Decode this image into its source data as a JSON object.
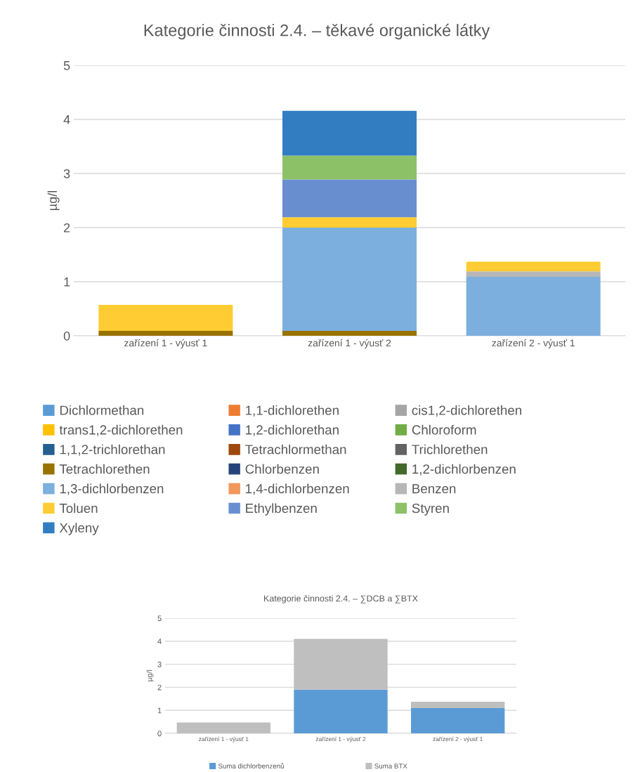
{
  "chart_data": [
    {
      "type": "bar",
      "title": "Kategorie činnosti 2.4. – těkavé organické látky",
      "ylabel": "µg/l",
      "stacked": true,
      "grid": "y",
      "legend": "bottom",
      "categories": [
        "zařízení 1 - výusť 1",
        "zařízení 1 - výusť 2",
        "zařízení 2 - výusť 1"
      ],
      "ylim": [
        0,
        5
      ],
      "yticks": [
        0,
        1,
        2,
        3,
        4,
        5
      ],
      "series": [
        {
          "name": "Dichlormethan",
          "color": "#5b9bd5",
          "values": [
            0,
            0,
            0
          ]
        },
        {
          "name": "1,1-dichlorethen",
          "color": "#ed7d31",
          "values": [
            0,
            0,
            0
          ]
        },
        {
          "name": "cis1,2-dichlorethen",
          "color": "#a5a5a5",
          "values": [
            0,
            0,
            0
          ]
        },
        {
          "name": "trans1,2-dichlorethen",
          "color": "#ffc000",
          "values": [
            0,
            0,
            0
          ]
        },
        {
          "name": "1,2-dichlorethan",
          "color": "#4472c4",
          "values": [
            0,
            0,
            0
          ]
        },
        {
          "name": "Chloroform",
          "color": "#70ad47",
          "values": [
            0,
            0,
            0
          ]
        },
        {
          "name": "1,1,2-trichlorethan",
          "color": "#255e91",
          "values": [
            0,
            0,
            0
          ]
        },
        {
          "name": "Tetrachlormethan",
          "color": "#9e480e",
          "values": [
            0,
            0,
            0
          ]
        },
        {
          "name": "Trichlorethen",
          "color": "#636363",
          "values": [
            0,
            0,
            0
          ]
        },
        {
          "name": "Tetrachlorethen",
          "color": "#997300",
          "values": [
            0.09,
            0.09,
            0
          ]
        },
        {
          "name": "Chlorbenzen",
          "color": "#264478",
          "values": [
            0,
            0,
            0
          ]
        },
        {
          "name": "1,2-dichlorbenzen",
          "color": "#43682b",
          "values": [
            0,
            0,
            0
          ]
        },
        {
          "name": "1,3-dichlorbenzen",
          "color": "#7cafdd",
          "values": [
            0,
            1.91,
            1.09
          ]
        },
        {
          "name": "1,4-dichlorbenzen",
          "color": "#f1975a",
          "values": [
            0,
            0,
            0
          ]
        },
        {
          "name": "Benzen",
          "color": "#b7b7b7",
          "values": [
            0,
            0,
            0.1
          ]
        },
        {
          "name": "Toluen",
          "color": "#ffcd33",
          "values": [
            0.48,
            0.19,
            0.18
          ]
        },
        {
          "name": "Ethylbenzen",
          "color": "#698ed0",
          "values": [
            0,
            0.7,
            0
          ]
        },
        {
          "name": "Styren",
          "color": "#8cc168",
          "values": [
            0,
            0.44,
            0
          ]
        },
        {
          "name": "Xyleny",
          "color": "#327dc2",
          "values": [
            0,
            0.83,
            0
          ]
        }
      ]
    },
    {
      "type": "bar",
      "title": "Kategorie činnosti 2.4. – ∑DCB a ∑BTX",
      "ylabel": "µg/l",
      "stacked": true,
      "grid": "y",
      "legend": "bottom",
      "categories": [
        "zařízení 1 - výusť 1",
        "zařízení 1 - výusť 2",
        "zařízení 2 - výusť 1"
      ],
      "ylim": [
        0,
        5
      ],
      "yticks": [
        0,
        1,
        2,
        3,
        4,
        5
      ],
      "series": [
        {
          "name": "Suma dichlorbenzenů",
          "color": "#5b9bd5",
          "values": [
            0,
            1.9,
            1.1
          ]
        },
        {
          "name": "Suma BTX",
          "color": "#bfbfbf",
          "values": [
            0.47,
            2.2,
            0.27
          ]
        }
      ]
    }
  ]
}
